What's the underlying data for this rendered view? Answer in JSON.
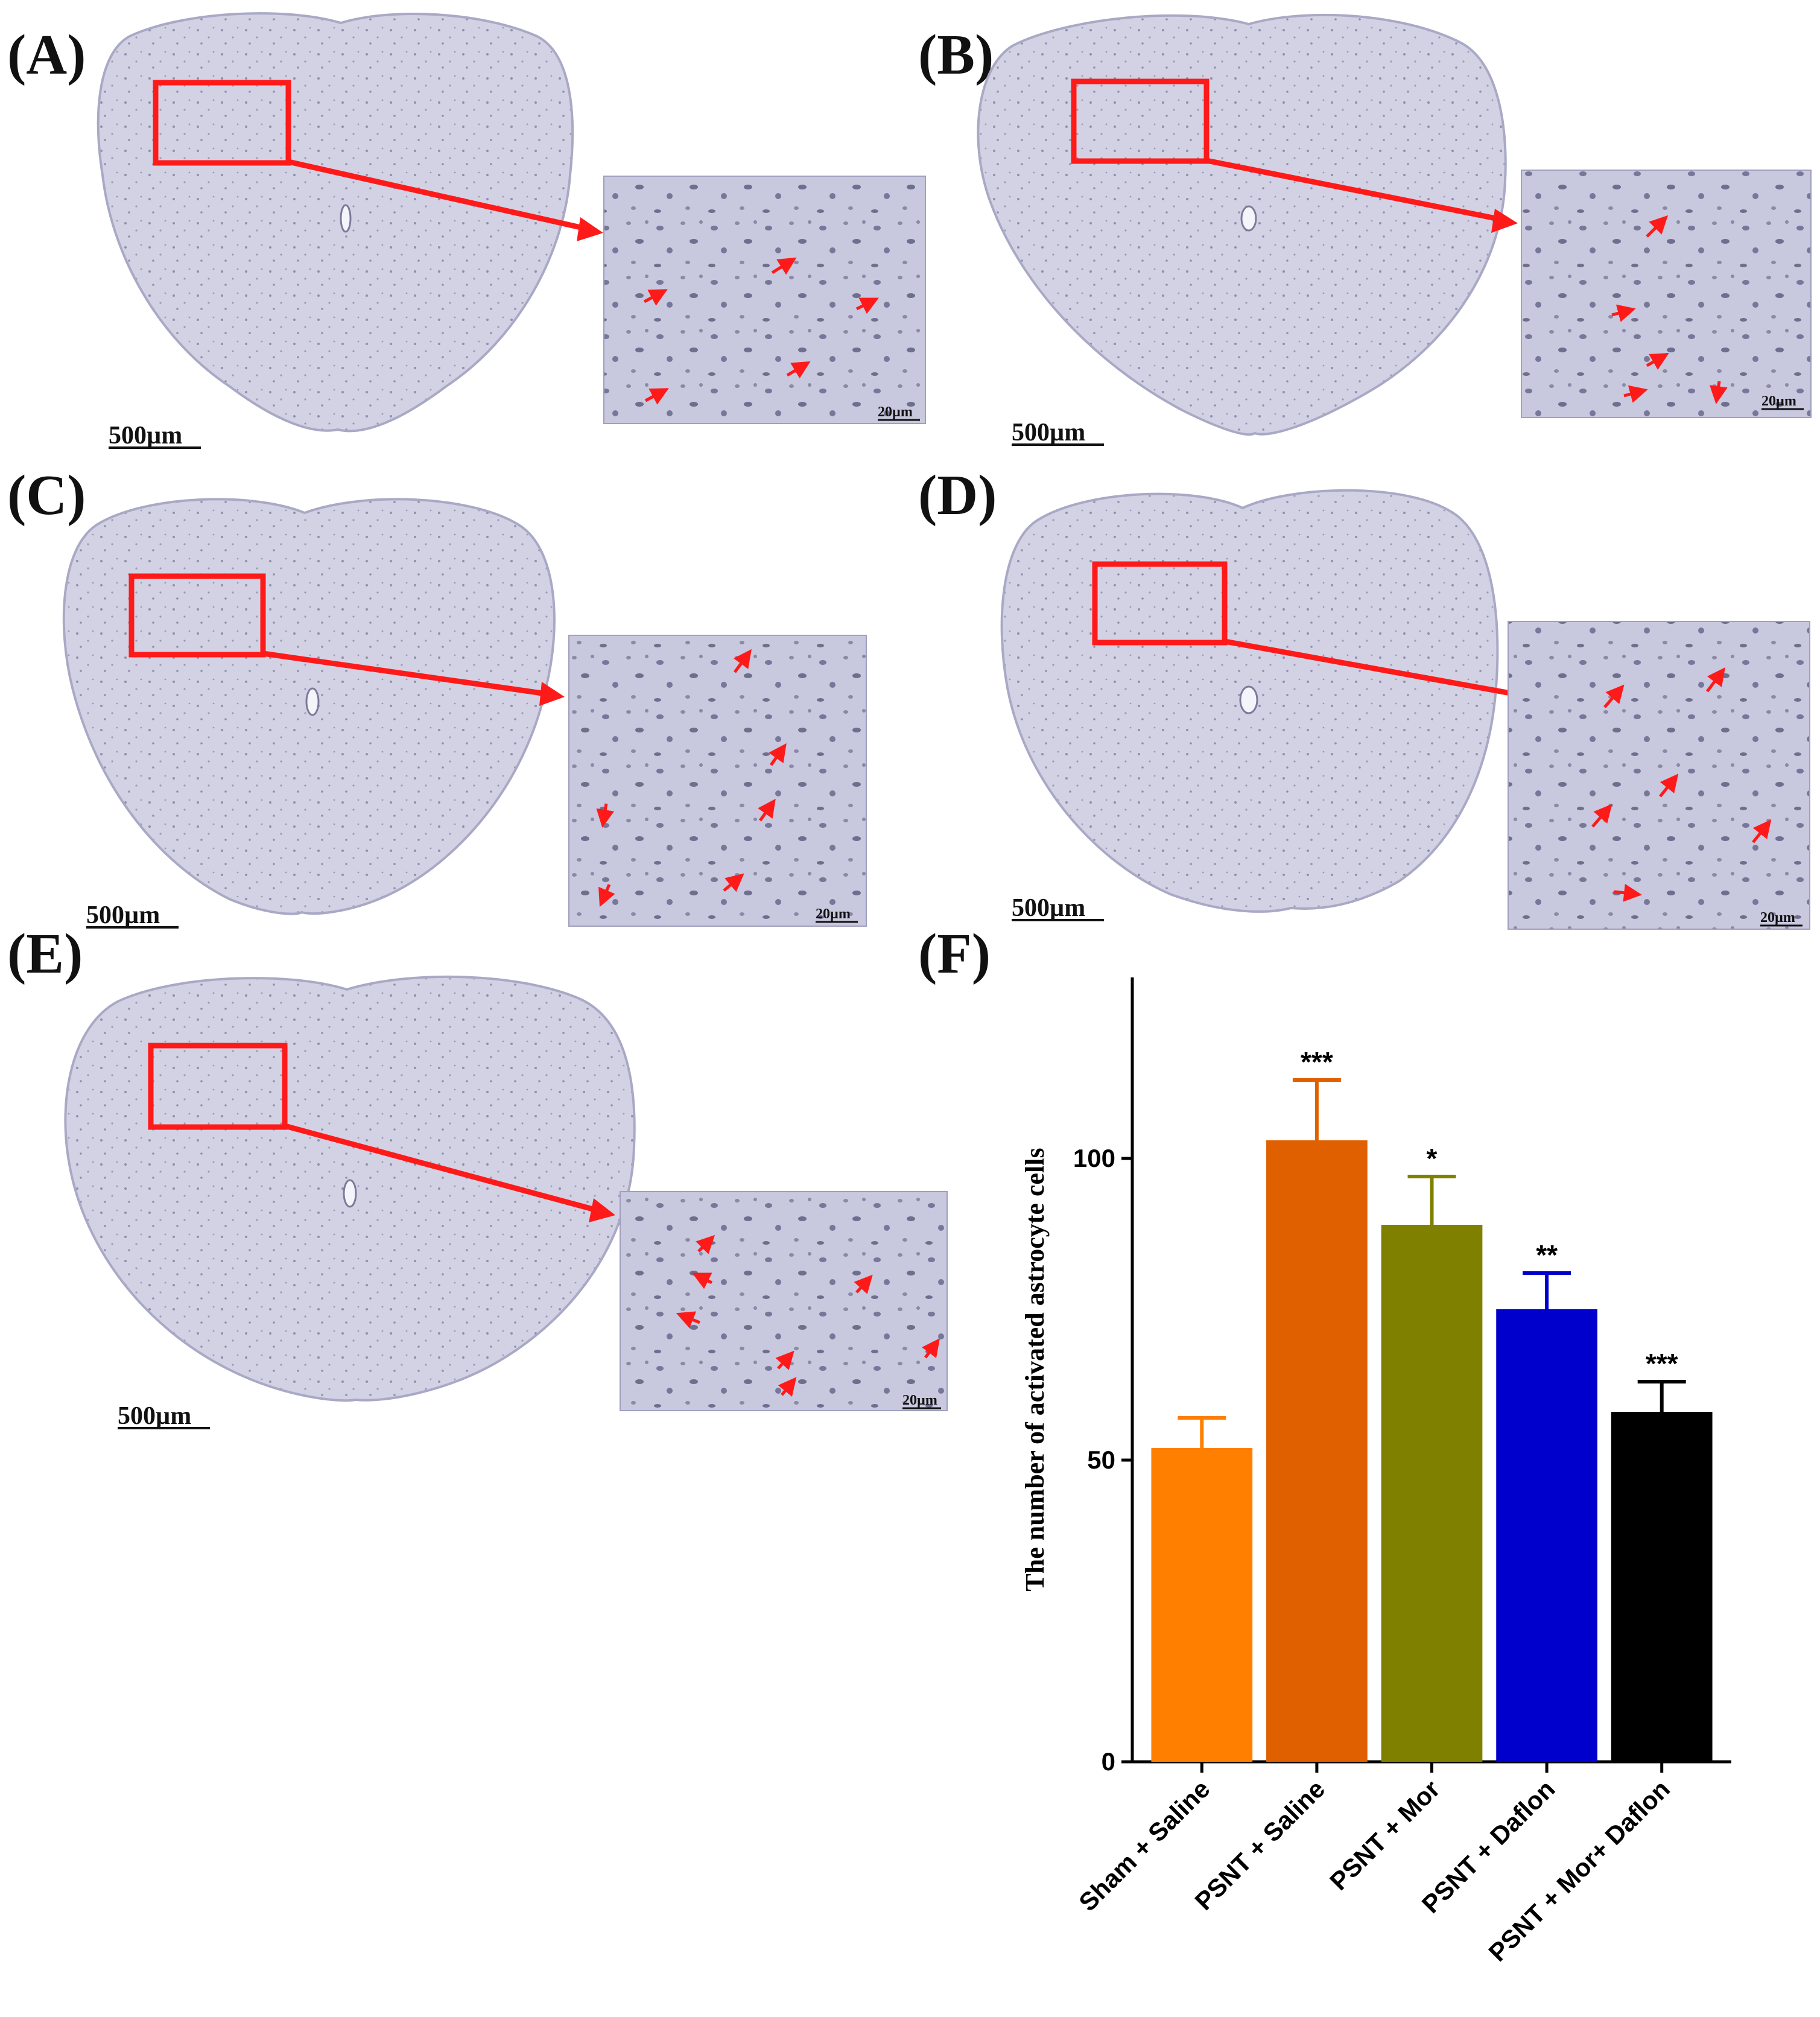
{
  "panels": [
    {
      "label": "(A)",
      "scale_bar": "500µm",
      "inset_scale": "20µm"
    },
    {
      "label": "(B)",
      "scale_bar": "500µm",
      "inset_scale": "20µm"
    },
    {
      "label": "(C)",
      "scale_bar": "500µm",
      "inset_scale": "20µm"
    },
    {
      "label": "(D)",
      "scale_bar": "500µm",
      "inset_scale": "20µm"
    },
    {
      "label": "(E)",
      "scale_bar": "500µm",
      "inset_scale": "20µm"
    }
  ],
  "colors": {
    "tissue": "#cfcfe2",
    "tissue_edge": "#a9a9c6",
    "inset_bg": "#c6c6de",
    "cell": "#6e6e8e",
    "highlight": "#ff1a1a"
  },
  "chart_panel_label": "(F)",
  "chart_data": {
    "type": "bar",
    "categories": [
      "Sham + Saline",
      "PSNT + Saline",
      "PSNT + Mor",
      "PSNT + Daflon",
      "PSNT + Mor+ Daflon"
    ],
    "values": [
      52,
      103,
      89,
      75,
      58
    ],
    "errors": [
      5,
      10,
      8,
      6,
      5
    ],
    "significance": [
      "",
      "***",
      "*",
      "**",
      "***"
    ],
    "colors": [
      "#ff8000",
      "#e06000",
      "#808000",
      "#0000cc",
      "#000000"
    ],
    "ylabel": "The number of activated astrocyte cells",
    "xlabel": "",
    "ylim": [
      0,
      130
    ],
    "yticks": [
      0,
      50,
      100
    ],
    "grid": false
  }
}
